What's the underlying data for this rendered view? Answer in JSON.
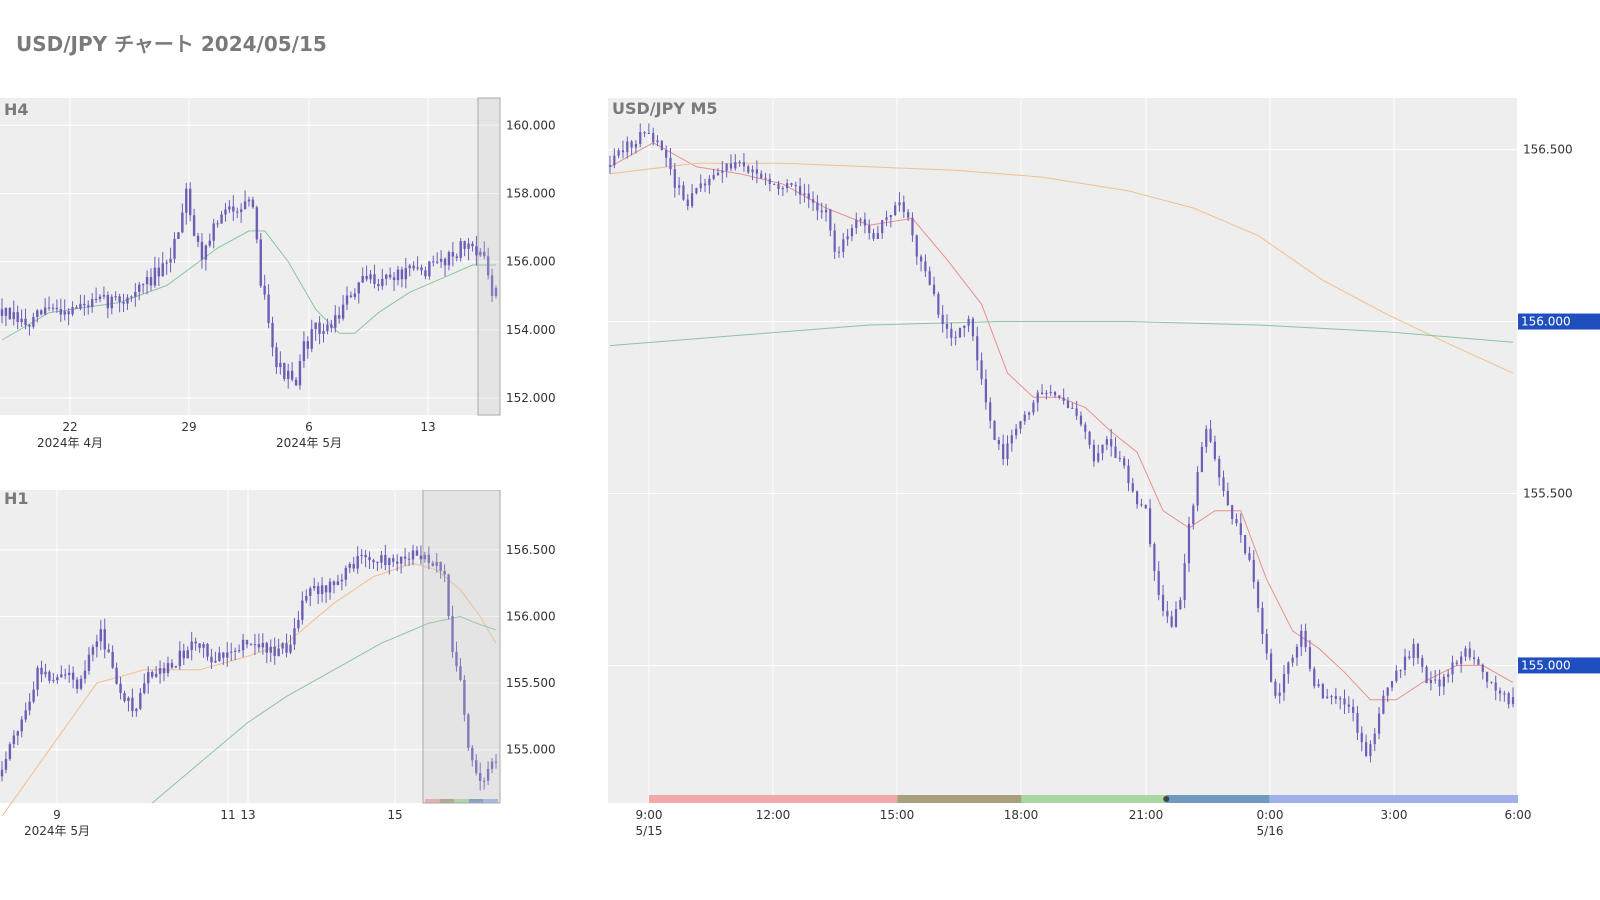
{
  "page": {
    "title": "USD/JPY チャート 2024/05/15"
  },
  "colors": {
    "plot_bg": "#eeeeee",
    "grid": "#ffffff",
    "candle": "#6a5fb5",
    "ma_green": "#8cc4a0",
    "ma_orange": "#f0c090",
    "ma_red": "#e89090",
    "label_bg": "#1f4fbf",
    "label_text": "#ffffff",
    "tick_text": "#333333",
    "panel_title": "#7a7a7a",
    "session_pink": "#f0a8a8",
    "session_olive": "#a8a07c",
    "session_green": "#a8d8a0",
    "session_steel": "#6f9ac0",
    "session_blue": "#a0b0ec"
  },
  "chart_data": [
    {
      "id": "h4",
      "title": "H4",
      "type": "candlestick",
      "ylim": [
        151.5,
        160.8
      ],
      "yticks": [
        152,
        154,
        156,
        158,
        160
      ],
      "ytick_labels": [
        "152.000",
        "154.000",
        "156.000",
        "158.000",
        "160.000"
      ],
      "xticks": [
        {
          "label": "22",
          "sub": "2024年 4月"
        },
        {
          "label": "29",
          "sub": ""
        },
        {
          "label": "6",
          "sub": "2024年 5月"
        },
        {
          "label": "13",
          "sub": ""
        }
      ],
      "highlight_last": true,
      "anchors": [
        [
          0,
          154.6
        ],
        [
          4,
          154.3
        ],
        [
          8,
          154.1
        ],
        [
          12,
          154.6
        ],
        [
          18,
          154.6
        ],
        [
          26,
          154.8
        ],
        [
          32,
          154.9
        ],
        [
          36,
          155.2
        ],
        [
          40,
          155.6
        ],
        [
          43,
          155.8
        ],
        [
          46,
          157.0
        ],
        [
          48,
          158.2
        ],
        [
          50,
          156.8
        ],
        [
          52,
          156.2
        ],
        [
          54,
          156.8
        ],
        [
          57,
          157.3
        ],
        [
          60,
          157.6
        ],
        [
          63,
          157.8
        ],
        [
          65,
          157.4
        ],
        [
          67,
          155.5
        ],
        [
          69,
          154.4
        ],
        [
          71,
          153.0
        ],
        [
          74,
          152.6
        ],
        [
          76,
          152.3
        ],
        [
          78,
          153.5
        ],
        [
          81,
          154.0
        ],
        [
          84,
          154.0
        ],
        [
          87,
          154.5
        ],
        [
          90,
          155.0
        ],
        [
          92,
          155.3
        ],
        [
          95,
          155.5
        ],
        [
          98,
          155.5
        ],
        [
          102,
          155.6
        ],
        [
          106,
          155.7
        ],
        [
          110,
          155.8
        ],
        [
          114,
          156.1
        ],
        [
          118,
          156.4
        ],
        [
          121,
          156.5
        ],
        [
          123,
          156.3
        ],
        [
          125,
          155.6
        ],
        [
          126,
          155.0
        ]
      ],
      "ma_lines": [
        {
          "color": "#8cc4a0",
          "points": [
            [
              0,
              153.7
            ],
            [
              12,
              154.5
            ],
            [
              30,
              154.8
            ],
            [
              42,
              155.3
            ],
            [
              55,
              156.4
            ],
            [
              63,
              156.9
            ],
            [
              67,
              156.9
            ],
            [
              73,
              156.0
            ],
            [
              80,
              154.6
            ],
            [
              86,
              153.9
            ],
            [
              90,
              153.9
            ],
            [
              96,
              154.5
            ],
            [
              104,
              155.1
            ],
            [
              112,
              155.5
            ],
            [
              120,
              155.9
            ],
            [
              126,
              155.9
            ]
          ]
        }
      ]
    },
    {
      "id": "h1",
      "title": "H1",
      "type": "candlestick",
      "ylim": [
        154.6,
        156.95
      ],
      "yticks": [
        155.0,
        155.5,
        156.0,
        156.5
      ],
      "ytick_labels": [
        "155.000",
        "155.500",
        "156.000",
        "156.500"
      ],
      "xticks": [
        {
          "label": "9",
          "sub": "2024年 5月"
        },
        {
          "label": "11",
          "sub": ""
        },
        {
          "label": "13",
          "sub": ""
        },
        {
          "label": "15",
          "sub": ""
        }
      ],
      "highlight_last": true,
      "anchors": [
        [
          0,
          154.8
        ],
        [
          4,
          155.1
        ],
        [
          7,
          155.3
        ],
        [
          10,
          155.6
        ],
        [
          13,
          155.55
        ],
        [
          16,
          155.6
        ],
        [
          20,
          155.5
        ],
        [
          23,
          155.7
        ],
        [
          26,
          155.9
        ],
        [
          29,
          155.6
        ],
        [
          32,
          155.4
        ],
        [
          35,
          155.3
        ],
        [
          38,
          155.55
        ],
        [
          42,
          155.6
        ],
        [
          46,
          155.7
        ],
        [
          50,
          155.8
        ],
        [
          54,
          155.7
        ],
        [
          58,
          155.75
        ],
        [
          62,
          155.8
        ],
        [
          66,
          155.8
        ],
        [
          70,
          155.7
        ],
        [
          74,
          155.8
        ],
        [
          78,
          156.2
        ],
        [
          82,
          156.2
        ],
        [
          86,
          156.3
        ],
        [
          90,
          156.4
        ],
        [
          94,
          156.45
        ],
        [
          98,
          156.4
        ],
        [
          102,
          156.45
        ],
        [
          106,
          156.45
        ],
        [
          110,
          156.4
        ],
        [
          113,
          156.3
        ],
        [
          115,
          155.7
        ],
        [
          117,
          155.5
        ],
        [
          119,
          155.0
        ],
        [
          121,
          154.8
        ],
        [
          123,
          154.8
        ],
        [
          125,
          154.9
        ]
      ],
      "ma_lines": [
        {
          "color": "#f0c090",
          "points": [
            [
              0,
              154.5
            ],
            [
              12,
              155.0
            ],
            [
              24,
              155.5
            ],
            [
              36,
              155.6
            ],
            [
              50,
              155.6
            ],
            [
              62,
              155.7
            ],
            [
              72,
              155.8
            ],
            [
              84,
              156.1
            ],
            [
              94,
              156.3
            ],
            [
              104,
              156.4
            ],
            [
              110,
              156.35
            ],
            [
              116,
              156.2
            ],
            [
              121,
              156.0
            ],
            [
              125,
              155.8
            ]
          ]
        },
        {
          "color": "#8cc4a0",
          "points": [
            [
              38,
              154.6
            ],
            [
              50,
              154.9
            ],
            [
              62,
              155.2
            ],
            [
              72,
              155.4
            ],
            [
              84,
              155.6
            ],
            [
              96,
              155.8
            ],
            [
              108,
              155.95
            ],
            [
              116,
              156.0
            ],
            [
              120,
              155.95
            ],
            [
              125,
              155.9
            ]
          ]
        }
      ]
    },
    {
      "id": "m5",
      "title": "USD/JPY M5",
      "type": "candlestick",
      "ylim": [
        154.6,
        156.65
      ],
      "yticks": [
        155.0,
        155.5,
        156.0,
        156.5
      ],
      "ytick_labels": [
        "155.000",
        "155.500",
        "156.000",
        "156.500"
      ],
      "price_labels": [
        "156.000",
        "155.000"
      ],
      "xticks": [
        {
          "label": "9:00",
          "sub": "5/15"
        },
        {
          "label": "12:00",
          "sub": ""
        },
        {
          "label": "15:00",
          "sub": ""
        },
        {
          "label": "18:00",
          "sub": ""
        },
        {
          "label": "21:00",
          "sub": ""
        },
        {
          "label": "0:00",
          "sub": "5/16"
        },
        {
          "label": "3:00",
          "sub": ""
        },
        {
          "label": "6:00",
          "sub": ""
        }
      ],
      "anchors": [
        [
          0,
          156.45
        ],
        [
          4,
          156.5
        ],
        [
          9,
          156.55
        ],
        [
          13,
          156.5
        ],
        [
          16,
          156.4
        ],
        [
          19,
          156.35
        ],
        [
          23,
          156.4
        ],
        [
          27,
          156.45
        ],
        [
          31,
          156.45
        ],
        [
          35,
          156.43
        ],
        [
          39,
          156.4
        ],
        [
          43,
          156.4
        ],
        [
          47,
          156.35
        ],
        [
          51,
          156.32
        ],
        [
          53,
          156.2
        ],
        [
          56,
          156.25
        ],
        [
          59,
          156.3
        ],
        [
          62,
          156.25
        ],
        [
          65,
          156.3
        ],
        [
          68,
          156.35
        ],
        [
          70,
          156.3
        ],
        [
          72,
          156.2
        ],
        [
          75,
          156.1
        ],
        [
          78,
          156.0
        ],
        [
          81,
          155.95
        ],
        [
          84,
          156.0
        ],
        [
          86,
          155.9
        ],
        [
          89,
          155.7
        ],
        [
          92,
          155.6
        ],
        [
          95,
          155.7
        ],
        [
          98,
          155.75
        ],
        [
          101,
          155.8
        ],
        [
          104,
          155.8
        ],
        [
          107,
          155.75
        ],
        [
          110,
          155.7
        ],
        [
          113,
          155.6
        ],
        [
          116,
          155.65
        ],
        [
          119,
          155.6
        ],
        [
          122,
          155.5
        ],
        [
          125,
          155.45
        ],
        [
          128,
          155.2
        ],
        [
          131,
          155.1
        ],
        [
          133,
          155.2
        ],
        [
          135,
          155.4
        ],
        [
          137,
          155.55
        ],
        [
          139,
          155.7
        ],
        [
          141,
          155.6
        ],
        [
          143,
          155.5
        ],
        [
          146,
          155.4
        ],
        [
          149,
          155.3
        ],
        [
          152,
          155.1
        ],
        [
          155,
          154.9
        ],
        [
          158,
          155.0
        ],
        [
          161,
          155.1
        ],
        [
          164,
          154.95
        ],
        [
          167,
          154.9
        ],
        [
          170,
          154.9
        ],
        [
          173,
          154.85
        ],
        [
          176,
          154.75
        ],
        [
          178,
          154.8
        ],
        [
          181,
          154.95
        ],
        [
          184,
          155.0
        ],
        [
          187,
          155.05
        ],
        [
          190,
          154.95
        ],
        [
          193,
          154.95
        ],
        [
          196,
          155.0
        ],
        [
          199,
          155.05
        ],
        [
          202,
          155.0
        ],
        [
          205,
          154.95
        ],
        [
          209,
          154.9
        ]
      ],
      "ma_lines": [
        {
          "color": "#e89090",
          "points": [
            [
              0,
              156.45
            ],
            [
              10,
              156.52
            ],
            [
              20,
              156.45
            ],
            [
              30,
              156.43
            ],
            [
              40,
              156.4
            ],
            [
              50,
              156.33
            ],
            [
              60,
              156.28
            ],
            [
              70,
              156.3
            ],
            [
              78,
              156.18
            ],
            [
              86,
              156.05
            ],
            [
              92,
              155.85
            ],
            [
              98,
              155.78
            ],
            [
              104,
              155.78
            ],
            [
              110,
              155.75
            ],
            [
              116,
              155.68
            ],
            [
              122,
              155.62
            ],
            [
              128,
              155.45
            ],
            [
              134,
              155.4
            ],
            [
              140,
              155.45
            ],
            [
              146,
              155.45
            ],
            [
              152,
              155.25
            ],
            [
              158,
              155.1
            ],
            [
              164,
              155.05
            ],
            [
              170,
              154.98
            ],
            [
              176,
              154.9
            ],
            [
              182,
              154.9
            ],
            [
              188,
              154.95
            ],
            [
              196,
              155.0
            ],
            [
              202,
              155.0
            ],
            [
              209,
              154.95
            ]
          ]
        },
        {
          "color": "#f0c090",
          "points": [
            [
              0,
              156.43
            ],
            [
              20,
              156.46
            ],
            [
              40,
              156.46
            ],
            [
              60,
              156.45
            ],
            [
              80,
              156.44
            ],
            [
              100,
              156.42
            ],
            [
              120,
              156.38
            ],
            [
              135,
              156.33
            ],
            [
              150,
              156.25
            ],
            [
              165,
              156.12
            ],
            [
              180,
              156.02
            ],
            [
              195,
              155.93
            ],
            [
              209,
              155.85
            ]
          ]
        },
        {
          "color": "#8cc4a0",
          "points": [
            [
              0,
              155.93
            ],
            [
              30,
              155.96
            ],
            [
              60,
              155.99
            ],
            [
              90,
              156.0
            ],
            [
              120,
              156.0
            ],
            [
              150,
              155.99
            ],
            [
              180,
              155.97
            ],
            [
              209,
              155.94
            ]
          ]
        }
      ],
      "sessions": [
        {
          "from": 9.0,
          "to": 15.0,
          "color": "#f0a8a8"
        },
        {
          "from": 15.0,
          "to": 18.0,
          "color": "#a8a07c"
        },
        {
          "from": 18.0,
          "to": 21.5,
          "color": "#a8d8a0"
        },
        {
          "from": 21.5,
          "to": 24.0,
          "color": "#6f9ac0"
        },
        {
          "from": 24.0,
          "to": 30.0,
          "color": "#a0b0ec"
        }
      ]
    }
  ]
}
